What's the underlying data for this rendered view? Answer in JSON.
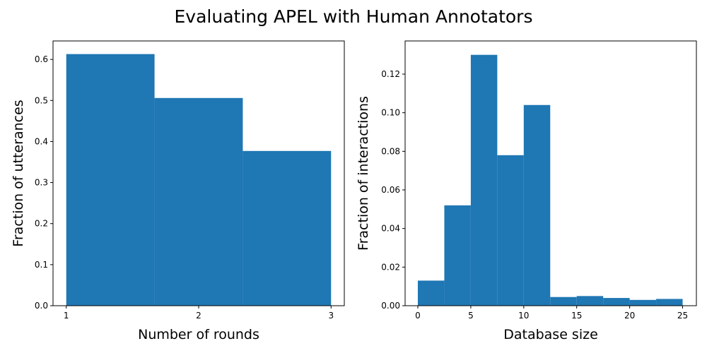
{
  "title": "Evaluating APEL with Human Annotators",
  "chart_data": [
    {
      "type": "histogram",
      "xlabel": "Number of rounds",
      "ylabel": "Fraction of utterances",
      "bins": [
        1,
        1.6667,
        2.3333,
        3
      ],
      "values": [
        0.613,
        0.506,
        0.377
      ],
      "color": "#1f77b4",
      "xlim": [
        0.9,
        3.1
      ],
      "ylim": [
        0,
        0.645
      ],
      "xticks": [
        1,
        2,
        3
      ],
      "yticks": [
        {
          "value": 0,
          "label": "0.0"
        },
        0.1,
        0.2,
        0.3,
        0.4,
        0.5,
        0.6
      ]
    },
    {
      "type": "histogram",
      "xlabel": "Database size",
      "ylabel": "Fraction of interactions",
      "bins": [
        0,
        2.5,
        5,
        7.5,
        10,
        12.5,
        15,
        17.5,
        20,
        22.5,
        25
      ],
      "values": [
        0.013,
        0.052,
        0.13,
        0.078,
        0.104,
        0.0045,
        0.005,
        0.004,
        0.003,
        0.0035
      ],
      "color": "#1f77b4",
      "xlim": [
        -1.2,
        26.3
      ],
      "ylim": [
        0,
        0.1372
      ],
      "xticks": [
        0,
        5,
        10,
        15,
        20,
        25
      ],
      "yticks": [
        {
          "value": 0,
          "label": "0.00"
        },
        0.02,
        0.04,
        0.06,
        0.08,
        {
          "value": 0.1,
          "label": "0.10"
        },
        0.12
      ]
    }
  ]
}
